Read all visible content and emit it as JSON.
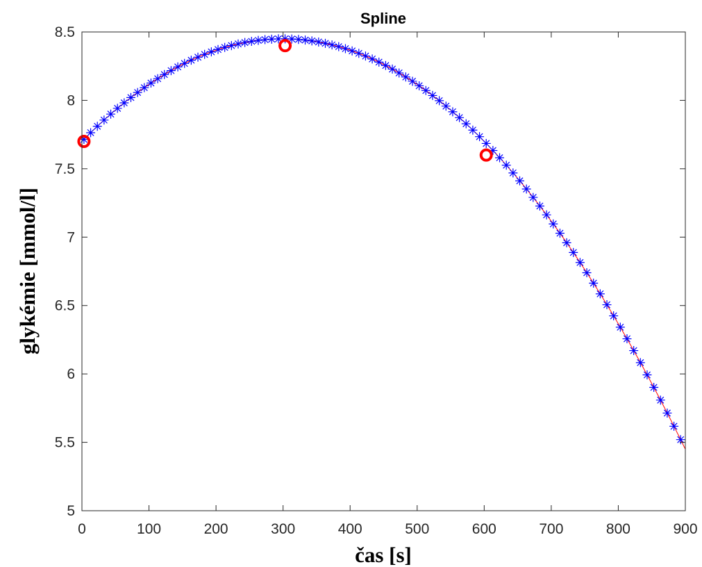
{
  "chart_data": {
    "type": "line",
    "title": "Spline",
    "xlabel": "čas [s]",
    "ylabel": "glykémie [mmol/l]",
    "xlim": [
      0,
      900
    ],
    "ylim": [
      5,
      8.5
    ],
    "xticks": [
      0,
      100,
      200,
      300,
      400,
      500,
      600,
      700,
      800,
      900
    ],
    "yticks": [
      5,
      5.5,
      6,
      6.5,
      7,
      7.5,
      8,
      8.5
    ],
    "x_tick_labels": [
      "0",
      "100",
      "200",
      "300",
      "400",
      "500",
      "600",
      "700",
      "800",
      "900"
    ],
    "y_tick_labels": [
      "5",
      "5.5",
      "6",
      "6.5",
      "7",
      "7.5",
      "8",
      "8.5"
    ],
    "grid": false,
    "legend": "none",
    "series": [
      {
        "role": "spline curve",
        "style": "line",
        "color": "#ff0000",
        "x_range": [
          0,
          900
        ],
        "formula": "y = 7.7 + 0.005*x - 0.0000083333*x^2"
      },
      {
        "role": "evaluated points",
        "style": "asterisk markers",
        "color": "#0000ff",
        "x_start": 3,
        "x_step": 10,
        "x_end": 893
      },
      {
        "role": "measured points",
        "style": "circle markers",
        "color": "#ff0000",
        "x": [
          3,
          303,
          603
        ],
        "y": [
          7.7,
          8.4,
          7.6
        ]
      }
    ]
  }
}
